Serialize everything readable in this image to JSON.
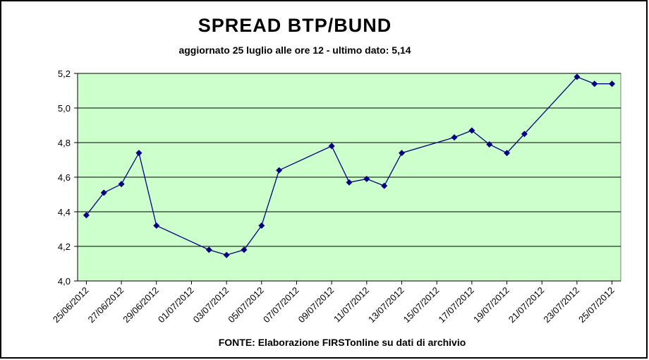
{
  "chart_data": {
    "type": "line",
    "title": "SPREAD BTP/BUND",
    "subtitle": "aggiornato 25 luglio alle ore 12 - ultimo dato: 5,14",
    "source": "FONTE: Elaborazione FIRSTonline su dati di archivio",
    "x": [
      "25/06/2012",
      "26/06/2012",
      "27/06/2012",
      "28/06/2012",
      "29/06/2012",
      "02/07/2012",
      "03/07/2012",
      "04/07/2012",
      "05/07/2012",
      "06/07/2012",
      "09/07/2012",
      "10/07/2012",
      "11/07/2012",
      "12/07/2012",
      "13/07/2012",
      "16/07/2012",
      "17/07/2012",
      "18/07/2012",
      "19/07/2012",
      "20/07/2012",
      "23/07/2012",
      "24/07/2012",
      "25/07/2012"
    ],
    "values": [
      4.38,
      4.51,
      4.56,
      4.74,
      4.32,
      4.18,
      4.15,
      4.18,
      4.32,
      4.64,
      4.78,
      4.57,
      4.59,
      4.55,
      4.74,
      4.83,
      4.87,
      4.79,
      4.74,
      4.85,
      5.18,
      5.14,
      5.14
    ],
    "color": "#000080",
    "xlim": [
      "25/06/2012",
      "25/07/2012"
    ],
    "xticks": [
      "25/06/2012",
      "27/06/2012",
      "29/06/2012",
      "01/07/2012",
      "03/07/2012",
      "05/07/2012",
      "07/07/2012",
      "09/07/2012",
      "11/07/2012",
      "13/07/2012",
      "15/07/2012",
      "17/07/2012",
      "19/07/2012",
      "21/07/2012",
      "23/07/2012",
      "25/07/2012"
    ],
    "ylim": [
      4.0,
      5.2
    ],
    "yticks": [
      {
        "value": 4.0,
        "label": "4,0"
      },
      {
        "value": 4.2,
        "label": "4,2"
      },
      {
        "value": 4.4,
        "label": "4,4"
      },
      {
        "value": 4.6,
        "label": "4,6"
      },
      {
        "value": 4.8,
        "label": "4,8"
      },
      {
        "value": 5.0,
        "label": "5,0"
      },
      {
        "value": 5.2,
        "label": "5,2"
      }
    ],
    "grid": true,
    "plot_background": "#ccffcc"
  }
}
